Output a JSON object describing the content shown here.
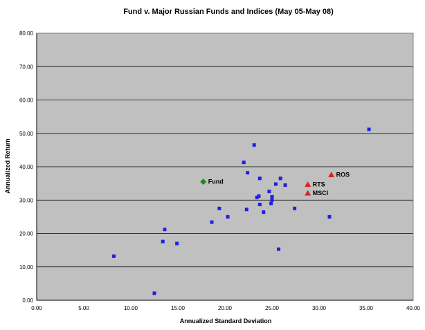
{
  "chart_data": {
    "type": "scatter",
    "title": "Fund v. Major Russian Funds and Indices (May 05-May 08)",
    "xlabel": "Annualized Standard Deviation",
    "ylabel": "Annualized Return",
    "xlim": [
      0,
      40
    ],
    "ylim": [
      0,
      80
    ],
    "xticks": [
      "0.00",
      "5.00",
      "10.00",
      "15.00",
      "20.00",
      "25.00",
      "30.00",
      "35.00",
      "40.00"
    ],
    "yticks": [
      "0.00",
      "10.00",
      "20.00",
      "30.00",
      "40.00",
      "50.00",
      "60.00",
      "70.00",
      "80.00"
    ],
    "grid": "horizontal",
    "plot_background": "#c0c0c0",
    "colors": {
      "funds": "#2020e0",
      "fund": "#1a8a1a",
      "indices": "#e02020"
    },
    "series": [
      {
        "marker": "square",
        "points": [
          [
            8.2,
            13.2
          ],
          [
            12.5,
            2.1
          ],
          [
            13.4,
            17.6
          ],
          [
            13.6,
            21.2
          ],
          [
            14.9,
            17.0
          ],
          [
            18.6,
            23.4
          ],
          [
            19.4,
            27.5
          ],
          [
            20.3,
            25.0
          ],
          [
            22.0,
            41.3
          ],
          [
            22.3,
            27.2
          ],
          [
            22.4,
            38.2
          ],
          [
            23.1,
            46.5
          ],
          [
            23.4,
            30.8
          ],
          [
            23.6,
            31.2
          ],
          [
            23.7,
            28.7
          ],
          [
            23.7,
            36.5
          ],
          [
            24.1,
            26.4
          ],
          [
            24.7,
            32.6
          ],
          [
            24.9,
            29.0
          ],
          [
            25.0,
            31.0
          ],
          [
            25.0,
            30.0
          ],
          [
            25.4,
            34.8
          ],
          [
            25.7,
            15.3
          ],
          [
            25.9,
            36.5
          ],
          [
            26.4,
            34.5
          ],
          [
            27.4,
            27.5
          ],
          [
            31.1,
            25.0
          ],
          [
            35.3,
            51.2
          ]
        ]
      },
      {
        "marker": "diamond",
        "points": [
          {
            "x": 17.7,
            "y": 35.5,
            "label": "Fund"
          }
        ]
      },
      {
        "marker": "triangle",
        "points": [
          {
            "x": 31.3,
            "y": 37.6,
            "label": "ROS"
          },
          {
            "x": 28.8,
            "y": 34.7,
            "label": "RTS"
          },
          {
            "x": 28.8,
            "y": 32.1,
            "label": "MSCI"
          }
        ]
      }
    ]
  }
}
